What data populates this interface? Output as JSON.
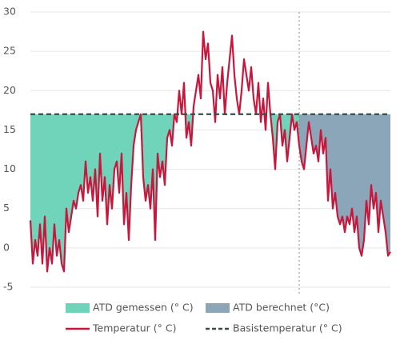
{
  "chart_data": {
    "type": "line",
    "ylim": [
      -5,
      30
    ],
    "yticks": [
      -5,
      0,
      5,
      10,
      15,
      20,
      25,
      30
    ],
    "grid": true,
    "series": [
      {
        "name": "ATD gemessen (° C)",
        "kind": "area",
        "color": "#6fd4b9",
        "values": [
          3.5,
          -2,
          1,
          -1,
          3,
          -2,
          4,
          -3,
          0,
          -2,
          3,
          -1,
          1,
          -2,
          -3,
          5,
          2,
          4,
          6,
          5,
          7,
          8,
          6,
          11,
          7,
          9,
          6,
          10,
          4,
          12,
          6,
          9,
          3,
          8,
          5,
          10,
          11,
          7,
          12,
          3,
          7,
          1,
          8,
          13,
          15,
          16,
          17,
          9,
          6,
          8,
          5,
          10,
          1,
          12,
          9,
          11,
          8,
          14,
          15,
          13,
          17,
          16,
          20,
          17,
          21,
          14,
          16,
          13,
          18,
          20,
          22,
          19,
          27.5,
          24,
          26,
          21,
          20,
          16,
          22,
          19,
          23,
          17,
          21,
          24,
          27,
          22,
          19,
          17,
          20,
          24,
          22,
          20,
          23,
          19,
          17,
          21,
          16,
          19,
          15,
          21,
          17,
          14,
          10,
          16,
          17,
          13,
          15,
          11,
          14,
          17,
          15,
          16,
          13,
          null,
          null,
          null,
          null,
          null,
          null,
          null,
          null,
          null,
          null,
          null,
          null,
          null,
          null,
          null,
          null,
          null,
          null,
          null,
          null,
          null,
          null,
          null,
          null,
          null,
          null,
          null,
          null,
          null,
          null,
          null,
          null,
          null,
          null,
          null,
          null,
          null,
          null
        ]
      },
      {
        "name": "ATD berechnet (°C)",
        "kind": "area",
        "color": "#8ba6b9",
        "values": [
          null,
          null,
          null,
          null,
          null,
          null,
          null,
          null,
          null,
          null,
          null,
          null,
          null,
          null,
          null,
          null,
          null,
          null,
          null,
          null,
          null,
          null,
          null,
          null,
          null,
          null,
          null,
          null,
          null,
          null,
          null,
          null,
          null,
          null,
          null,
          null,
          null,
          null,
          null,
          null,
          null,
          null,
          null,
          null,
          null,
          null,
          null,
          null,
          null,
          null,
          null,
          null,
          null,
          null,
          null,
          null,
          null,
          null,
          null,
          null,
          null,
          null,
          null,
          null,
          null,
          null,
          null,
          null,
          null,
          null,
          null,
          null,
          null,
          null,
          null,
          null,
          null,
          null,
          null,
          null,
          null,
          null,
          null,
          null,
          null,
          null,
          null,
          null,
          null,
          null,
          null,
          null,
          null,
          null,
          null,
          null,
          null,
          null,
          null,
          null,
          null,
          null,
          null,
          null,
          null,
          null,
          null,
          null,
          null,
          null,
          null,
          null,
          13,
          11,
          10,
          13,
          16,
          14,
          12,
          13,
          11,
          15,
          12,
          14,
          6,
          10,
          5,
          7,
          4,
          3,
          4,
          2,
          4,
          3,
          5,
          2,
          4,
          0,
          -1,
          1,
          6,
          3,
          8,
          5,
          7,
          2,
          6,
          4,
          2,
          -1,
          -0.5
        ]
      },
      {
        "name": "Temperatur (° C)",
        "kind": "line",
        "color": "#c8173c",
        "values": [
          3.5,
          -2,
          1,
          -1,
          3,
          -2,
          4,
          -3,
          0,
          -2,
          3,
          -1,
          1,
          -2,
          -3,
          5,
          2,
          4,
          6,
          5,
          7,
          8,
          6,
          11,
          7,
          9,
          6,
          10,
          4,
          12,
          6,
          9,
          3,
          8,
          5,
          10,
          11,
          7,
          12,
          3,
          7,
          1,
          8,
          13,
          15,
          16,
          17,
          9,
          6,
          8,
          5,
          10,
          1,
          12,
          9,
          11,
          8,
          14,
          15,
          13,
          17,
          16,
          20,
          17,
          21,
          14,
          16,
          13,
          18,
          20,
          22,
          19,
          27.5,
          24,
          26,
          21,
          20,
          16,
          22,
          19,
          23,
          17,
          21,
          24,
          27,
          22,
          19,
          17,
          20,
          24,
          22,
          20,
          23,
          19,
          17,
          21,
          16,
          19,
          15,
          21,
          17,
          14,
          10,
          16,
          17,
          13,
          15,
          11,
          14,
          17,
          15,
          16,
          13,
          11,
          10,
          13,
          16,
          14,
          12,
          13,
          11,
          15,
          12,
          14,
          6,
          10,
          5,
          7,
          4,
          3,
          4,
          2,
          4,
          3,
          5,
          2,
          4,
          0,
          -1,
          1,
          6,
          3,
          8,
          5,
          7,
          2,
          6,
          4,
          2,
          -1,
          -0.5
        ]
      },
      {
        "name": "Basistemperatur (° C)",
        "kind": "base",
        "color": "#3a4a4a",
        "value": 17
      }
    ]
  }
}
